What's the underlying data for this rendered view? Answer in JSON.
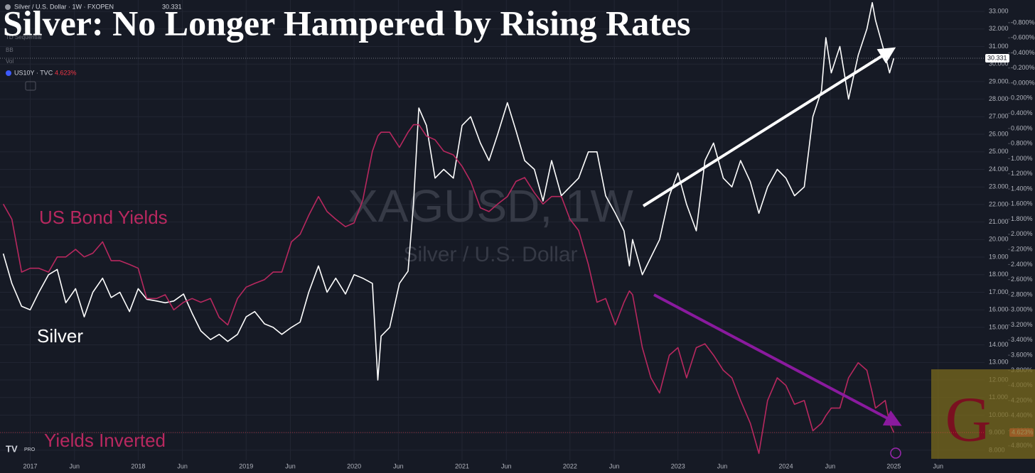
{
  "chart_data": {
    "type": "line",
    "title": "Silver: No Longer Hampered by Rising Rates",
    "watermark": "XAGUSD, 1W",
    "watermark_subtitle": "Silver / U.S. Dollar",
    "annotations": [
      "US Bond Yields",
      "Silver",
      "Yields Inverted"
    ],
    "indicators": [
      "TD Sequential",
      "BB",
      "Vol"
    ],
    "branding": {
      "logo_text": "G",
      "tv_badge": "PRO"
    },
    "x": [
      2016.75,
      2016.83,
      2016.92,
      2017.0,
      2017.08,
      2017.17,
      2017.25,
      2017.33,
      2017.42,
      2017.5,
      2017.58,
      2017.67,
      2017.75,
      2017.83,
      2017.92,
      2018.0,
      2018.08,
      2018.17,
      2018.25,
      2018.33,
      2018.42,
      2018.5,
      2018.58,
      2018.67,
      2018.75,
      2018.83,
      2018.92,
      2019.0,
      2019.08,
      2019.17,
      2019.25,
      2019.33,
      2019.42,
      2019.5,
      2019.58,
      2019.67,
      2019.75,
      2019.83,
      2019.92,
      2020.0,
      2020.08,
      2020.17,
      2020.22,
      2020.25,
      2020.33,
      2020.42,
      2020.5,
      2020.55,
      2020.6,
      2020.67,
      2020.75,
      2020.83,
      2020.92,
      2021.0,
      2021.08,
      2021.17,
      2021.25,
      2021.33,
      2021.42,
      2021.5,
      2021.58,
      2021.67,
      2021.75,
      2021.83,
      2021.92,
      2022.0,
      2022.08,
      2022.17,
      2022.25,
      2022.33,
      2022.42,
      2022.5,
      2022.55,
      2022.58,
      2022.67,
      2022.75,
      2022.83,
      2022.92,
      2023.0,
      2023.08,
      2023.17,
      2023.25,
      2023.33,
      2023.42,
      2023.5,
      2023.58,
      2023.67,
      2023.75,
      2023.83,
      2023.92,
      2024.0,
      2024.08,
      2024.17,
      2024.25,
      2024.33,
      2024.37,
      2024.42,
      2024.5,
      2024.58,
      2024.67,
      2024.75,
      2024.8,
      2024.83,
      2024.92,
      2024.96,
      2025.0
    ],
    "series": [
      {
        "name": "Silver / U.S. Dollar · 1W · FXOPEN",
        "color": "#ffffff",
        "last_label": "30.331",
        "values": [
          19.2,
          17.5,
          16.2,
          16.0,
          17.0,
          18.0,
          18.3,
          16.4,
          17.2,
          15.6,
          17.0,
          17.8,
          16.7,
          17.0,
          15.9,
          17.2,
          16.6,
          16.5,
          16.4,
          16.5,
          16.9,
          15.8,
          14.8,
          14.3,
          14.6,
          14.2,
          14.6,
          15.6,
          15.9,
          15.2,
          15.0,
          14.6,
          15.0,
          15.3,
          17.0,
          18.5,
          17.0,
          17.8,
          16.9,
          18.0,
          17.8,
          17.5,
          12.0,
          14.5,
          15.0,
          17.5,
          18.2,
          22.0,
          27.5,
          26.5,
          23.5,
          24.0,
          23.5,
          26.5,
          27.0,
          25.5,
          24.5,
          26.0,
          27.8,
          26.2,
          24.5,
          24.0,
          22.2,
          24.5,
          22.5,
          23.0,
          23.5,
          25.0,
          25.0,
          22.5,
          21.5,
          20.5,
          18.5,
          20.0,
          18.0,
          19.0,
          20.0,
          22.5,
          23.8,
          22.0,
          20.5,
          24.5,
          25.5,
          23.5,
          23.0,
          24.5,
          23.3,
          21.5,
          23.0,
          24.0,
          23.5,
          22.5,
          23.0,
          27.0,
          28.5,
          31.5,
          29.5,
          31.0,
          28.0,
          30.5,
          32.0,
          33.5,
          32.5,
          30.5,
          29.5,
          30.331
        ]
      },
      {
        "name": "US10Y · TVC",
        "color": "#b8285f",
        "axis": "y2",
        "last_label": "4.623%",
        "values": [
          1.6,
          1.8,
          2.5,
          2.45,
          2.45,
          2.5,
          2.3,
          2.3,
          2.2,
          2.3,
          2.25,
          2.1,
          2.35,
          2.35,
          2.4,
          2.45,
          2.85,
          2.85,
          2.8,
          3.0,
          2.9,
          2.85,
          2.9,
          2.85,
          3.1,
          3.2,
          2.85,
          2.7,
          2.65,
          2.6,
          2.5,
          2.5,
          2.1,
          2.0,
          1.75,
          1.5,
          1.7,
          1.8,
          1.9,
          1.85,
          1.55,
          0.9,
          0.7,
          0.65,
          0.65,
          0.85,
          0.65,
          0.55,
          0.55,
          0.7,
          0.75,
          0.9,
          0.95,
          1.1,
          1.3,
          1.65,
          1.7,
          1.6,
          1.5,
          1.3,
          1.25,
          1.45,
          1.6,
          1.5,
          1.5,
          1.8,
          1.95,
          2.4,
          2.9,
          2.85,
          3.2,
          2.9,
          2.75,
          2.8,
          3.5,
          3.9,
          4.1,
          3.6,
          3.5,
          3.9,
          3.5,
          3.45,
          3.6,
          3.8,
          3.9,
          4.2,
          4.5,
          4.9,
          4.2,
          3.9,
          4.0,
          4.25,
          4.2,
          4.6,
          4.5,
          4.4,
          4.3,
          4.3,
          3.9,
          3.7,
          3.8,
          4.1,
          4.3,
          4.2,
          4.5,
          4.623
        ]
      }
    ],
    "xlim": [
      2016.72,
      2025.84
    ],
    "xticks": [
      2017,
      {
        "value": 2017.41,
        "label": "Jun"
      },
      2018,
      {
        "value": 2018.41,
        "label": "Jun"
      },
      2019,
      {
        "value": 2019.41,
        "label": "Jun"
      },
      2020,
      {
        "value": 2020.41,
        "label": "Jun"
      },
      2021,
      {
        "value": 2021.41,
        "label": "Jun"
      },
      2022,
      {
        "value": 2022.41,
        "label": "Jun"
      },
      2023,
      {
        "value": 2023.41,
        "label": "Jun"
      },
      2024,
      {
        "value": 2024.41,
        "label": "Jun"
      },
      2025,
      {
        "value": 2025.41,
        "label": "Jun"
      }
    ],
    "ylim": [
      7.43,
      33.65
    ],
    "yticks": [
      {
        "value": 8,
        "label": "8.000"
      },
      {
        "value": 9,
        "label": "9.000"
      },
      {
        "value": 10,
        "label": "10.000"
      },
      {
        "value": 11,
        "label": "11.000"
      },
      {
        "value": 12,
        "label": "12.000"
      },
      {
        "value": 13,
        "label": "13.000"
      },
      {
        "value": 14,
        "label": "14.000"
      },
      {
        "value": 15,
        "label": "15.000"
      },
      {
        "value": 16,
        "label": "16.000"
      },
      {
        "value": 17,
        "label": "17.000"
      },
      {
        "value": 18,
        "label": "18.000"
      },
      {
        "value": 19,
        "label": "19.000"
      },
      {
        "value": 20,
        "label": "20.000"
      },
      {
        "value": 21,
        "label": "21.000"
      },
      {
        "value": 22,
        "label": "22.000"
      },
      {
        "value": 23,
        "label": "23.000"
      },
      {
        "value": 24,
        "label": "24.000"
      },
      {
        "value": 25,
        "label": "25.000"
      },
      {
        "value": 26,
        "label": "26.000"
      },
      {
        "value": 27,
        "label": "27.000"
      },
      {
        "value": 28,
        "label": "28.000"
      },
      {
        "value": 29,
        "label": "29.000"
      },
      {
        "value": 30,
        "label": "30.000"
      },
      {
        "value": 31,
        "label": "31.000"
      },
      {
        "value": 32,
        "label": "32.000"
      },
      {
        "value": 33,
        "label": "33.000"
      }
    ],
    "y2lim": [
      -1.1,
      4.99
    ],
    "y2_inverted": true,
    "y2ticks": [
      {
        "value": -0.8,
        "label": "-0.800%"
      },
      {
        "value": -0.6,
        "label": "-0.600%"
      },
      {
        "value": -0.4,
        "label": "-0.400%"
      },
      {
        "value": -0.2,
        "label": "-0.200%"
      },
      {
        "value": 0,
        "label": "-0.000%"
      },
      {
        "value": 0.2,
        "label": "0.200%"
      },
      {
        "value": 0.4,
        "label": "0.400%"
      },
      {
        "value": 0.6,
        "label": "0.600%"
      },
      {
        "value": 0.8,
        "label": "0.800%"
      },
      {
        "value": 1.0,
        "label": "1.000%"
      },
      {
        "value": 1.2,
        "label": "1.200%"
      },
      {
        "value": 1.4,
        "label": "1.400%"
      },
      {
        "value": 1.6,
        "label": "1.600%"
      },
      {
        "value": 1.8,
        "label": "1.800%"
      },
      {
        "value": 2.0,
        "label": "2.000%"
      },
      {
        "value": 2.2,
        "label": "2.200%"
      },
      {
        "value": 2.4,
        "label": "2.400%"
      },
      {
        "value": 2.6,
        "label": "2.600%"
      },
      {
        "value": 2.8,
        "label": "2.800%"
      },
      {
        "value": 3.0,
        "label": "3.000%"
      },
      {
        "value": 3.2,
        "label": "3.200%"
      },
      {
        "value": 3.4,
        "label": "3.400%"
      },
      {
        "value": 3.6,
        "label": "3.600%"
      },
      {
        "value": 3.8,
        "label": "3.800%"
      },
      {
        "value": 4.0,
        "label": "4.000%"
      },
      {
        "value": 4.2,
        "label": "4.200%"
      },
      {
        "value": 4.4,
        "label": "4.400%"
      },
      {
        "value": 4.6,
        "label": "4.600%"
      },
      {
        "value": 4.8,
        "label": "4.800%"
      }
    ],
    "grid": true
  }
}
